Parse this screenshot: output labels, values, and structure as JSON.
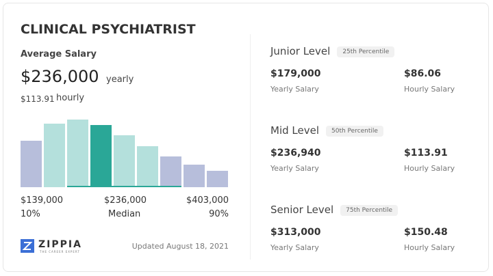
{
  "title": "CLINICAL PSYCHIATRIST",
  "average": {
    "label": "Average Salary",
    "yearly": "$236,000",
    "yearly_unit": "yearly",
    "hourly": "$113.91",
    "hourly_unit": "hourly"
  },
  "range": {
    "low": "$139,000",
    "low_pct": "10%",
    "mid": "$236,000",
    "mid_pct": "Median",
    "high": "$403,000",
    "high_pct": "90%"
  },
  "brand": {
    "name": "ZIPPIA",
    "tagline": "THE CAREER EXPERT"
  },
  "updated": "Updated August 18, 2021",
  "levels": [
    {
      "name": "Junior Level",
      "percentile": "25th Percentile",
      "yearly": "$179,000",
      "yearly_label": "Yearly Salary",
      "hourly": "$86.06",
      "hourly_label": "Hourly Salary"
    },
    {
      "name": "Mid Level",
      "percentile": "50th Percentile",
      "yearly": "$236,940",
      "yearly_label": "Yearly Salary",
      "hourly": "$113.91",
      "hourly_label": "Hourly Salary"
    },
    {
      "name": "Senior Level",
      "percentile": "75th Percentile",
      "yearly": "$313,000",
      "yearly_label": "Yearly Salary",
      "hourly": "$150.48",
      "hourly_label": "Hourly Salary"
    }
  ]
}
